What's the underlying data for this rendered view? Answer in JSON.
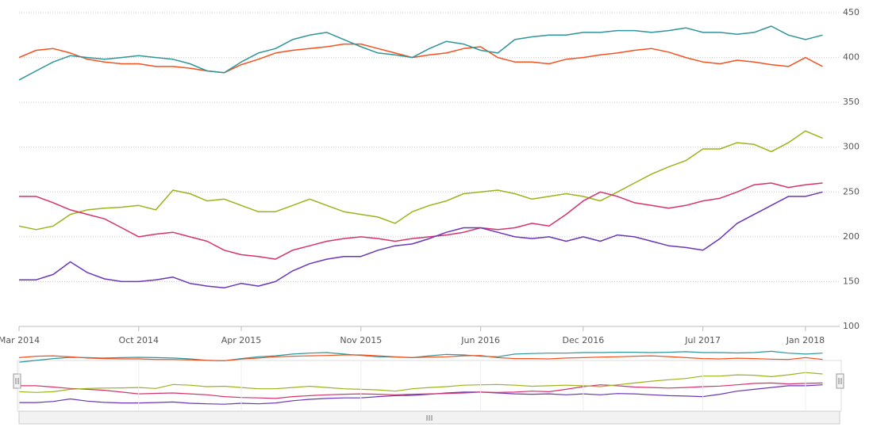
{
  "chart_data": {
    "type": "line",
    "x": [
      "2014-03",
      "2014-04",
      "2014-05",
      "2014-06",
      "2014-07",
      "2014-08",
      "2014-09",
      "2014-10",
      "2014-11",
      "2014-12",
      "2015-01",
      "2015-02",
      "2015-03",
      "2015-04",
      "2015-05",
      "2015-06",
      "2015-07",
      "2015-08",
      "2015-09",
      "2015-10",
      "2015-11",
      "2015-12",
      "2016-01",
      "2016-02",
      "2016-03",
      "2016-04",
      "2016-05",
      "2016-06",
      "2016-07",
      "2016-08",
      "2016-09",
      "2016-10",
      "2016-11",
      "2016-12",
      "2017-01",
      "2017-02",
      "2017-03",
      "2017-04",
      "2017-05",
      "2017-06",
      "2017-07",
      "2017-08",
      "2017-09",
      "2017-10",
      "2017-11",
      "2017-12",
      "2018-01",
      "2018-02"
    ],
    "series": [
      {
        "color": "#f4511e",
        "values": [
          400,
          408,
          410,
          405,
          398,
          395,
          393,
          393,
          390,
          390,
          388,
          385,
          383,
          392,
          398,
          405,
          408,
          410,
          412,
          415,
          415,
          410,
          405,
          400,
          403,
          405,
          410,
          412,
          400,
          395,
          395,
          393,
          398,
          400,
          403,
          405,
          408,
          410,
          406,
          400,
          395,
          393,
          397,
          395,
          392,
          390,
          400,
          390
        ]
      },
      {
        "color": "#2e9599",
        "values": [
          375,
          385,
          395,
          402,
          400,
          398,
          400,
          402,
          400,
          398,
          393,
          385,
          383,
          395,
          405,
          410,
          420,
          425,
          428,
          420,
          412,
          405,
          403,
          400,
          410,
          418,
          415,
          408,
          405,
          420,
          423,
          425,
          425,
          428,
          428,
          430,
          430,
          428,
          430,
          433,
          428,
          428,
          426,
          428,
          435,
          425,
          420,
          425
        ]
      },
      {
        "color": "#9bb31c",
        "values": [
          212,
          208,
          212,
          225,
          230,
          232,
          233,
          235,
          230,
          252,
          248,
          240,
          242,
          235,
          228,
          228,
          235,
          242,
          235,
          228,
          225,
          222,
          215,
          228,
          235,
          240,
          248,
          250,
          252,
          248,
          242,
          245,
          248,
          245,
          240,
          250,
          260,
          270,
          278,
          285,
          298,
          298,
          305,
          303,
          295,
          305,
          318,
          310
        ]
      },
      {
        "color": "#d6336c",
        "values": [
          245,
          245,
          238,
          230,
          225,
          220,
          210,
          200,
          203,
          205,
          200,
          195,
          185,
          180,
          178,
          175,
          185,
          190,
          195,
          198,
          200,
          198,
          195,
          198,
          200,
          202,
          205,
          210,
          208,
          210,
          215,
          212,
          225,
          240,
          250,
          245,
          238,
          235,
          232,
          235,
          240,
          243,
          250,
          258,
          260,
          255,
          258,
          260
        ]
      },
      {
        "color": "#6a35b8",
        "values": [
          152,
          152,
          158,
          172,
          160,
          153,
          150,
          150,
          152,
          155,
          148,
          145,
          143,
          148,
          145,
          150,
          162,
          170,
          175,
          178,
          178,
          185,
          190,
          192,
          198,
          205,
          210,
          210,
          205,
          200,
          198,
          200,
          195,
          200,
          195,
          202,
          200,
          195,
          190,
          188,
          185,
          198,
          215,
          225,
          235,
          245,
          245,
          250
        ]
      }
    ],
    "xlim": [
      "2014-03",
      "2018-03"
    ],
    "xticks": [
      {
        "value": "2014-03",
        "label": "Mar 2014"
      },
      {
        "value": "2014-10",
        "label": "Oct 2014"
      },
      {
        "value": "2015-04",
        "label": "Apr 2015"
      },
      {
        "value": "2015-11",
        "label": "Nov 2015"
      },
      {
        "value": "2016-06",
        "label": "Jun 2016"
      },
      {
        "value": "2016-12",
        "label": "Dec 2016"
      },
      {
        "value": "2017-07",
        "label": "Jul 2017"
      },
      {
        "value": "2018-01",
        "label": "Jan 2018"
      }
    ],
    "ylim": [
      100,
      450
    ],
    "yticks": [
      100,
      150,
      200,
      250,
      300,
      350,
      400,
      450
    ],
    "grid": true,
    "y_axis_side": "right",
    "navigator": true
  }
}
